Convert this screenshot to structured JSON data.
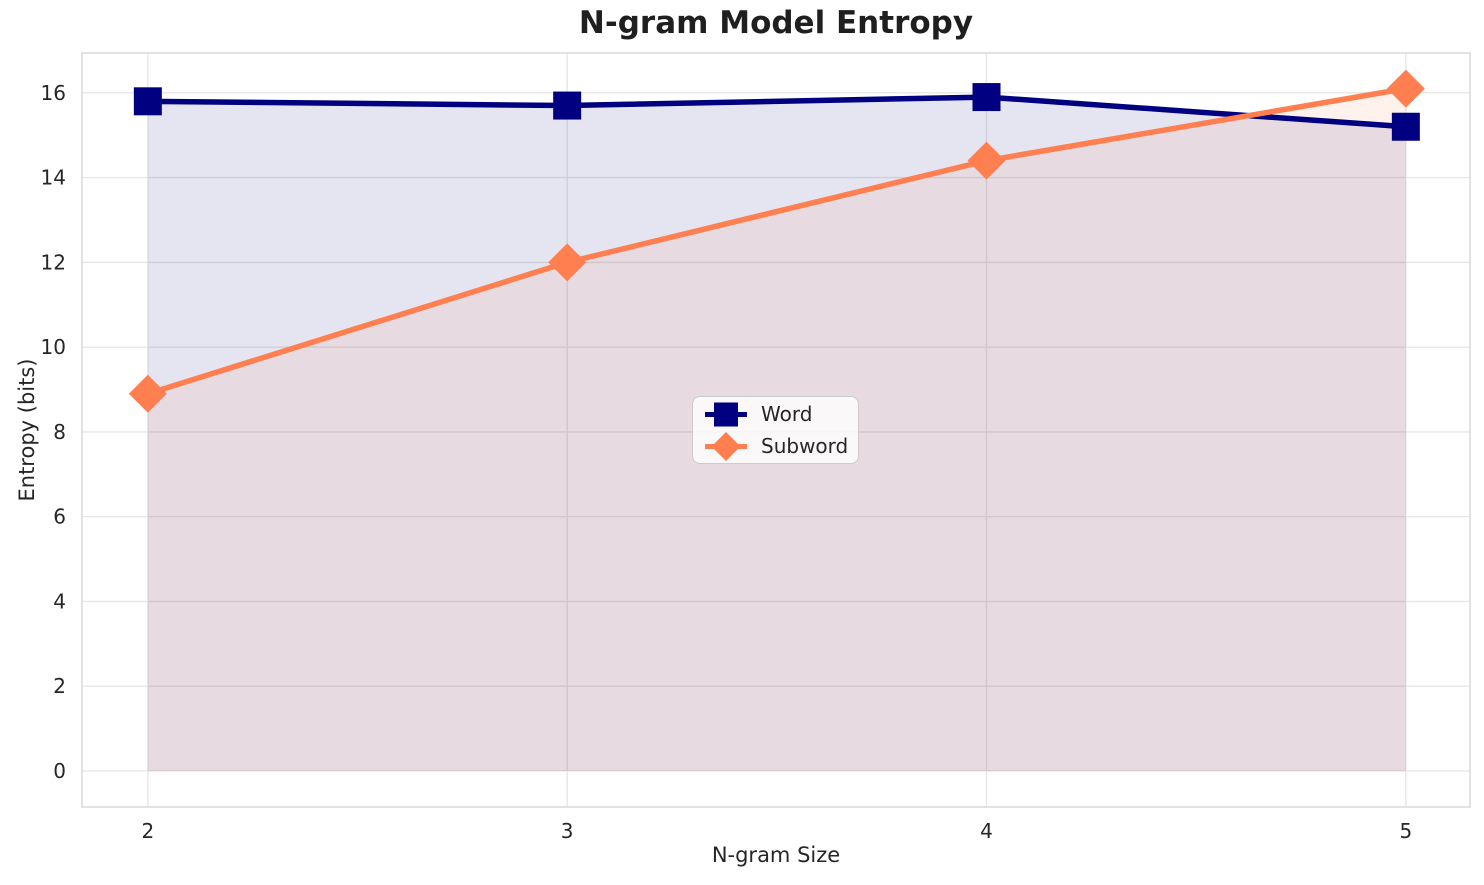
{
  "chart_data": {
    "type": "line",
    "title": "N-gram Model Entropy",
    "xlabel": "N-gram Size",
    "ylabel": "Entropy (bits)",
    "x": [
      2,
      3,
      4,
      5
    ],
    "xtick_labels": [
      "2",
      "3",
      "4",
      "5"
    ],
    "ytick_values": [
      0,
      2,
      4,
      6,
      8,
      10,
      12,
      14,
      16
    ],
    "xlim": [
      1.843,
      5.153
    ],
    "ylim": [
      -0.85,
      16.94
    ],
    "grid": true,
    "legend_position": "center",
    "fill_baseline": 0,
    "fill_alpha": 0.1,
    "series": [
      {
        "name": "Word",
        "marker": "square",
        "color": "#000080",
        "values": [
          15.8,
          15.7,
          15.9,
          15.2
        ]
      },
      {
        "name": "Subword",
        "marker": "diamond",
        "color": "#FF7F50",
        "values": [
          8.9,
          12.0,
          14.4,
          16.1
        ]
      }
    ]
  },
  "colors": {
    "background": "#ffffff",
    "grid": "#e7e7e7",
    "spine": "#d9d9d9",
    "text": "#262626",
    "title_text": "#1f1f1f",
    "legend_border": "#cccccc",
    "legend_background": "rgba(255,255,255,0.8)"
  }
}
